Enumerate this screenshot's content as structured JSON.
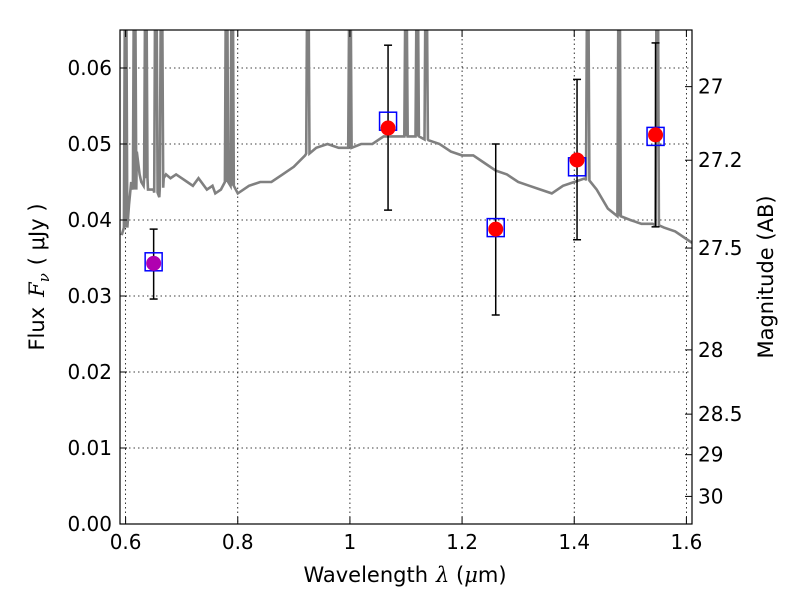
{
  "chart_data": {
    "type": "scatter",
    "xlabel": {
      "prefix": "Wavelength",
      "symbol": "λ",
      "unit_open": " (",
      "unit_mu": "μ",
      "unit_rest": "m)"
    },
    "ylabel": {
      "prefix": "Flux",
      "symbol": "F",
      "sub": "ν",
      "unit": "( μJy )"
    },
    "y2label": "Magnitude (AB)",
    "xlim": [
      0.59,
      1.61
    ],
    "ylim": [
      0.0,
      0.065
    ],
    "xticks": [
      0.6,
      0.8,
      1.0,
      1.2,
      1.4,
      1.6
    ],
    "xtick_labels": [
      "0.6",
      "0.8",
      "1",
      "1.2",
      "1.4",
      "1.6"
    ],
    "yticks": [
      0.0,
      0.01,
      0.02,
      0.03,
      0.04,
      0.05,
      0.06
    ],
    "ytick_labels": [
      "0.00",
      "0.01",
      "0.02",
      "0.03",
      "0.04",
      "0.05",
      "0.06"
    ],
    "y2ticks": [
      {
        "mag": 27,
        "label": "27"
      },
      {
        "mag": 27.2,
        "label": "27.2"
      },
      {
        "mag": 27.5,
        "label": "27.5"
      },
      {
        "mag": 28,
        "label": "28"
      },
      {
        "mag": 28.5,
        "label": "28.5"
      },
      {
        "mag": 29,
        "label": "29"
      },
      {
        "mag": 30,
        "label": "30"
      }
    ],
    "grid": true,
    "colors": {
      "spectrum": "#808080",
      "observed": "#ff0000",
      "observed_first": "#b000b0",
      "model": "#0000ff",
      "errorbar": "#000000",
      "grid": "#000000"
    },
    "spectrum": {
      "name": "",
      "x": [
        0.593,
        0.6,
        0.606,
        0.61,
        0.616,
        0.62,
        0.625,
        0.628,
        0.632,
        0.636,
        0.64,
        0.65,
        0.66,
        0.668,
        0.672,
        0.68,
        0.69,
        0.7,
        0.71,
        0.72,
        0.73,
        0.745,
        0.755,
        0.76,
        0.77,
        0.78,
        0.79,
        0.8,
        0.82,
        0.84,
        0.86,
        0.88,
        0.9,
        0.92,
        0.94,
        0.96,
        0.98,
        1.0,
        1.02,
        1.04,
        1.06,
        1.08,
        1.1,
        1.12,
        1.14,
        1.16,
        1.18,
        1.2,
        1.22,
        1.24,
        1.26,
        1.28,
        1.3,
        1.32,
        1.34,
        1.36,
        1.38,
        1.4,
        1.42,
        1.44,
        1.46,
        1.48,
        1.5,
        1.52,
        1.54,
        1.56,
        1.58,
        1.6,
        1.61
      ],
      "y": [
        0.038,
        0.039,
        0.042,
        0.045,
        0.044,
        0.049,
        0.046,
        0.045,
        0.0445,
        0.0455,
        0.044,
        0.044,
        0.043,
        0.0455,
        0.046,
        0.0455,
        0.046,
        0.0455,
        0.045,
        0.0445,
        0.0455,
        0.044,
        0.0445,
        0.0435,
        0.044,
        0.045,
        0.0445,
        0.0435,
        0.0445,
        0.045,
        0.045,
        0.046,
        0.047,
        0.0485,
        0.0495,
        0.05,
        0.0495,
        0.0495,
        0.05,
        0.05,
        0.051,
        0.051,
        0.051,
        0.051,
        0.0505,
        0.05,
        0.049,
        0.0485,
        0.0485,
        0.0475,
        0.0465,
        0.046,
        0.045,
        0.0445,
        0.044,
        0.0435,
        0.0445,
        0.045,
        0.0455,
        0.044,
        0.0415,
        0.0405,
        0.04,
        0.0395,
        0.0395,
        0.039,
        0.0385,
        0.0375,
        0.037
      ]
    },
    "spectrum_spikes": [
      0.6,
      0.616,
      0.636,
      0.654,
      0.664,
      0.78,
      0.79,
      0.925,
      1.0,
      1.1,
      1.12,
      1.136,
      1.424,
      1.48,
      1.548
    ],
    "observed": [
      {
        "x": 0.65,
        "y": 0.0343,
        "err_low": 0.0296,
        "err_high": 0.0388
      },
      {
        "x": 1.068,
        "y": 0.0521,
        "err_low": 0.0413,
        "err_high": 0.063
      },
      {
        "x": 1.26,
        "y": 0.0388,
        "err_low": 0.0275,
        "err_high": 0.05
      },
      {
        "x": 1.405,
        "y": 0.0479,
        "err_low": 0.0374,
        "err_high": 0.0585
      },
      {
        "x": 1.545,
        "y": 0.0512,
        "err_low": 0.0391,
        "err_high": 0.0633
      }
    ],
    "model": [
      {
        "x": 0.65,
        "y": 0.0345
      },
      {
        "x": 1.068,
        "y": 0.053
      },
      {
        "x": 1.26,
        "y": 0.039
      },
      {
        "x": 1.405,
        "y": 0.047
      },
      {
        "x": 1.545,
        "y": 0.051
      }
    ]
  }
}
